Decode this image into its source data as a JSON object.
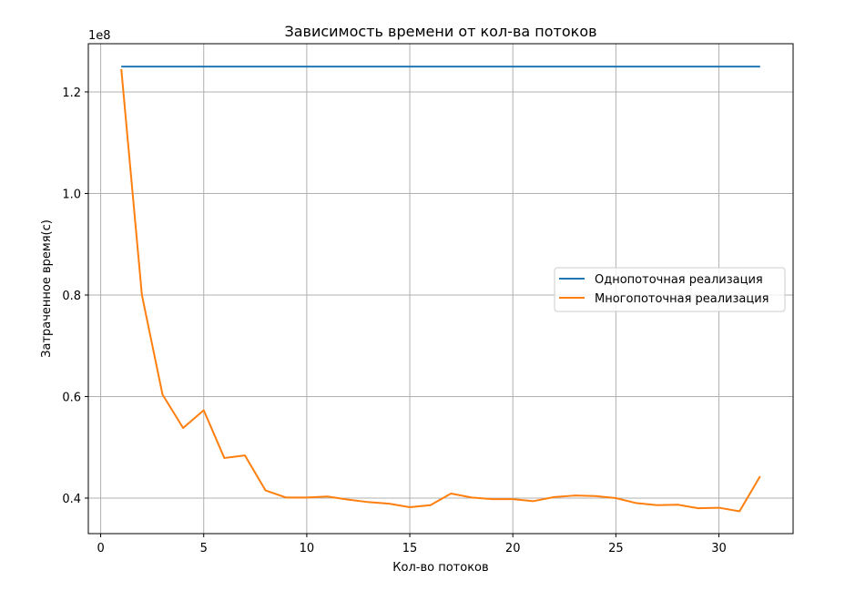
{
  "chart_data": {
    "type": "line",
    "title": "Зависимость времени от кол-ва потоков",
    "xlabel": "Кол-во потоков",
    "ylabel": "Затраченное время(с)",
    "y_offset_label": "1e8",
    "xlim": [
      -0.6,
      33.6
    ],
    "ylim": [
      0.33,
      1.295
    ],
    "x_ticks": [
      0,
      5,
      10,
      15,
      20,
      25,
      30
    ],
    "x_tick_labels": [
      "0",
      "5",
      "10",
      "15",
      "20",
      "25",
      "30"
    ],
    "y_ticks": [
      0.4,
      0.6,
      0.8,
      1.0,
      1.2
    ],
    "y_tick_labels": [
      "0.4",
      "0.6",
      "0.8",
      "1.0",
      "1.2"
    ],
    "grid": true,
    "legend_position": "center-right",
    "x": [
      1,
      2,
      3,
      4,
      5,
      6,
      7,
      8,
      9,
      10,
      11,
      12,
      13,
      14,
      15,
      16,
      17,
      18,
      19,
      20,
      21,
      22,
      23,
      24,
      25,
      26,
      27,
      28,
      29,
      30,
      31,
      32
    ],
    "series": [
      {
        "name": "Однопоточная реализация",
        "color": "#1f77b4",
        "values": [
          1.25,
          1.25,
          1.25,
          1.25,
          1.25,
          1.25,
          1.25,
          1.25,
          1.25,
          1.25,
          1.25,
          1.25,
          1.25,
          1.25,
          1.25,
          1.25,
          1.25,
          1.25,
          1.25,
          1.25,
          1.25,
          1.25,
          1.25,
          1.25,
          1.25,
          1.25,
          1.25,
          1.25,
          1.25,
          1.25,
          1.25,
          1.25
        ]
      },
      {
        "name": "Многопоточная реализация",
        "color": "#ff7f0e",
        "values": [
          1.245,
          0.8,
          0.604,
          0.538,
          0.573,
          0.479,
          0.484,
          0.415,
          0.401,
          0.401,
          0.403,
          0.397,
          0.392,
          0.389,
          0.382,
          0.386,
          0.409,
          0.401,
          0.398,
          0.398,
          0.394,
          0.402,
          0.405,
          0.404,
          0.4,
          0.39,
          0.386,
          0.387,
          0.38,
          0.381,
          0.374,
          0.443
        ]
      }
    ]
  }
}
